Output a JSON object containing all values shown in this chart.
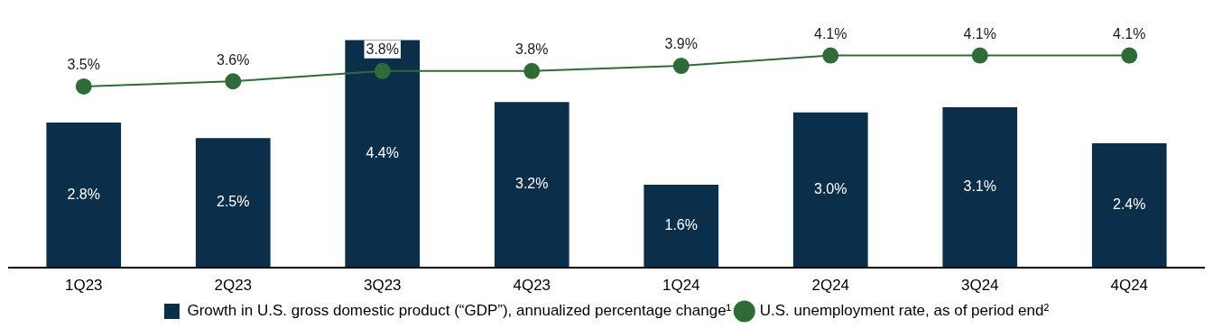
{
  "chart_data": {
    "type": "bar",
    "categories": [
      "1Q23",
      "2Q23",
      "3Q23",
      "4Q23",
      "1Q24",
      "2Q24",
      "3Q24",
      "4Q24"
    ],
    "series": [
      {
        "name": "Growth in U.S. gross domestic product (“GDP”), annualized percentage change¹",
        "color": "#0b2f4b",
        "values": [
          2.8,
          2.5,
          4.4,
          3.2,
          1.6,
          3.0,
          3.1,
          2.4
        ],
        "value_labels": [
          "2.8%",
          "2.5%",
          "4.4%",
          "3.2%",
          "1.6%",
          "3.0%",
          "3.1%",
          "2.4%"
        ]
      },
      {
        "name": "U.S. unemployment rate, as of period end²",
        "type": "line",
        "color": "#2f6b38",
        "marker": "circle",
        "values": [
          3.5,
          3.6,
          3.8,
          3.8,
          3.9,
          4.1,
          4.1,
          4.1
        ],
        "value_labels": [
          "3.5%",
          "3.6%",
          "3.8%",
          "3.8%",
          "3.9%",
          "4.1%",
          "4.1%",
          "4.1%"
        ]
      }
    ],
    "tick_labels": "x",
    "legend": "bottom"
  }
}
